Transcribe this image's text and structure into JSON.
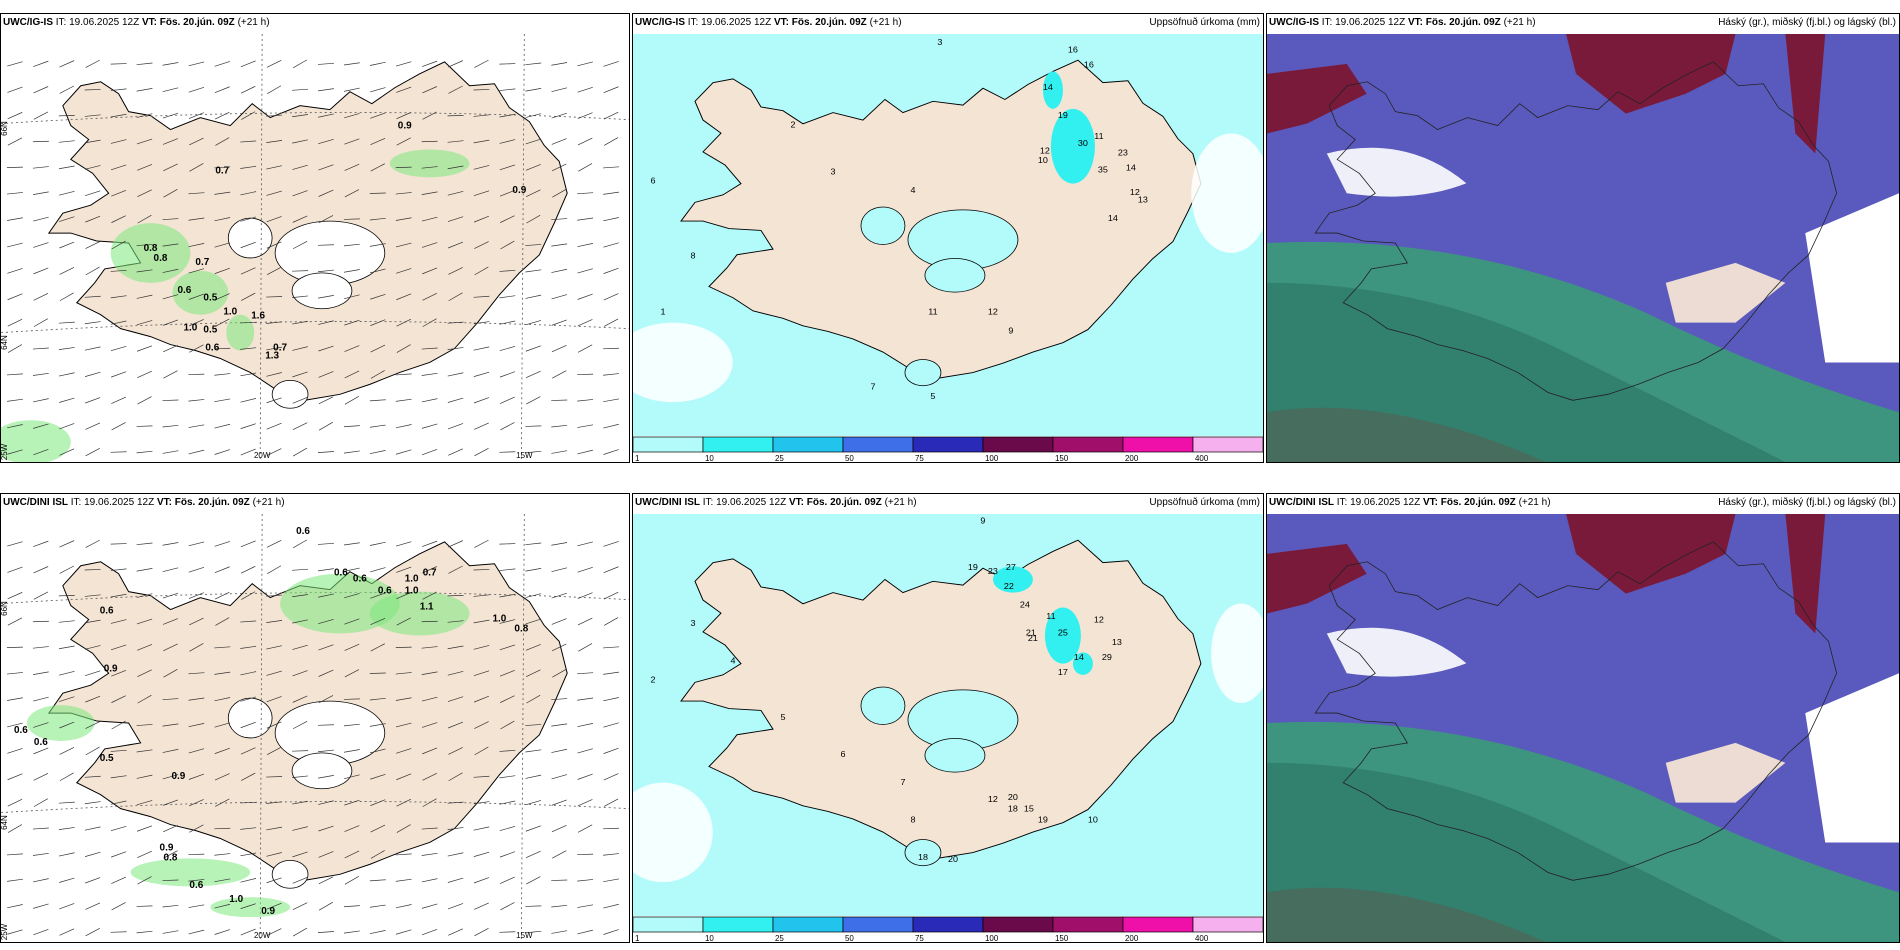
{
  "rows": [
    {
      "wind": {
        "model": "UWC/IG-IS",
        "it": "IT: 19.06.2025 12Z",
        "vt": "VT: Fös. 20.jún. 09Z",
        "lead": "(+21 h)",
        "values": [
          "0.9",
          "0.7",
          "0.9",
          "0.8",
          "0.8",
          "0.7",
          "0.6",
          "0.5",
          "1.0",
          "1.0",
          "0.5",
          "0.6",
          "1.6",
          "0.7",
          "1.3"
        ]
      },
      "precip": {
        "model": "UWC/IG-IS",
        "it": "IT: 19.06.2025 12Z",
        "vt": "VT: Fös. 20.jún. 09Z",
        "lead": "(+21 h)",
        "right": "Uppsöfnuð úrkoma (mm)",
        "values": [
          "3",
          "16",
          "16",
          "14",
          "19",
          "30",
          "11",
          "12",
          "10",
          "23",
          "14",
          "35",
          "12",
          "13",
          "14",
          "11",
          "12",
          "9",
          "7",
          "5",
          "4",
          "3",
          "2",
          "6",
          "8",
          "1"
        ]
      },
      "clouds": {
        "model": "UWC/IG-IS",
        "it": "IT: 19.06.2025 12Z",
        "vt": "VT: Fös. 20.jún. 09Z",
        "lead": "(+21 h)",
        "right": "Háský (gr.), miðský (fj.bl.) og lágský (bl.)"
      }
    },
    {
      "wind": {
        "model": "UWC/DINI ISL",
        "it": "IT: 19.06.2025 12Z",
        "vt": "VT: Fös. 20.jún. 09Z",
        "lead": "(+21 h)",
        "values": [
          "0.6",
          "0.6",
          "0.6",
          "0.6",
          "1.0",
          "0.7",
          "0.6",
          "1.0",
          "1.1",
          "1.0",
          "0.8",
          "0.6",
          "0.9",
          "0.6",
          "0.5",
          "0.9",
          "0.9",
          "0.8",
          "0.6",
          "1.0",
          "0.9"
        ]
      },
      "precip": {
        "model": "UWC/DINI ISL",
        "it": "IT: 19.06.2025 12Z",
        "vt": "VT: Fös. 20.jún. 09Z",
        "lead": "(+21 h)",
        "right": "Uppsöfnuð úrkoma (mm)",
        "values": [
          "9",
          "19",
          "23",
          "27",
          "22",
          "24",
          "21",
          "11",
          "25",
          "12",
          "13",
          "21",
          "14",
          "29",
          "17",
          "20",
          "18",
          "15",
          "19",
          "12",
          "18",
          "20",
          "10",
          "8",
          "7",
          "6",
          "5",
          "4",
          "3",
          "2"
        ]
      },
      "clouds": {
        "model": "UWC/DINI ISL",
        "it": "IT: 19.06.2025 12Z",
        "vt": "VT: Fös. 20.jún. 09Z",
        "lead": "(+21 h)",
        "right": "Háský (gr.), miðský (fj.bl.) og lágský (bl.)"
      }
    }
  ],
  "axis": {
    "lat66": "66N",
    "lat64": "64N",
    "lon25": "25W",
    "lon20": "20W",
    "lon15": "15W"
  },
  "legend": {
    "ticks": [
      "1",
      "10",
      "25",
      "50",
      "75",
      "100",
      "150",
      "200",
      "400"
    ],
    "colors": [
      "#b3fbfb",
      "#33f0f0",
      "#22c4ee",
      "#3e6fe8",
      "#2a2ab8",
      "#6a0a4a",
      "#a0106a",
      "#ee10a8",
      "#f6b0ee"
    ]
  },
  "colors": {
    "land": "#f4e4d4",
    "ocean": "#ffffff",
    "wind_green": "#7ce87c",
    "precip_cyan": "#b3fbfb",
    "high_cloud": "#7a1a3a",
    "mid_cloud": "#5a5abe",
    "low_cloud": "#3a9a78"
  }
}
